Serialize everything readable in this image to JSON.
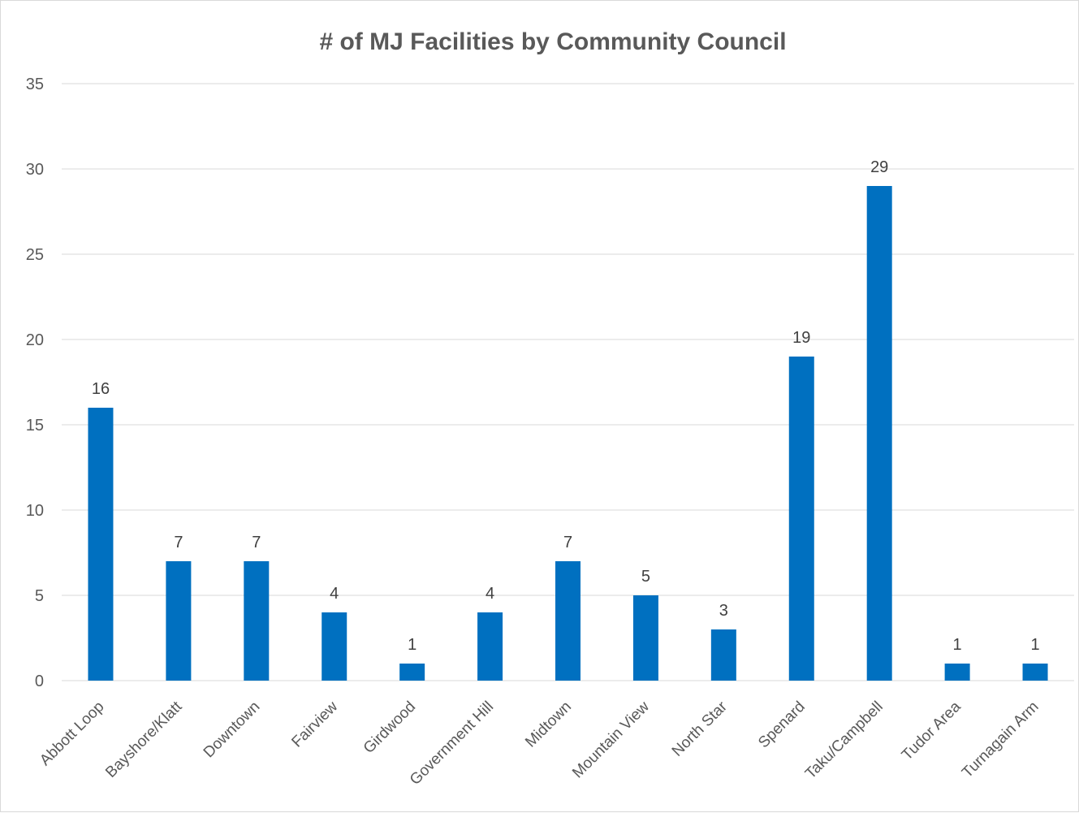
{
  "chart_data": {
    "type": "bar",
    "title": "# of MJ Facilities by Community Council",
    "categories": [
      "Abbott Loop",
      "Bayshore/Klatt",
      "Downtown",
      "Fairview",
      "Girdwood",
      "Government Hill",
      "Midtown",
      "Mountain View",
      "North Star",
      "Spenard",
      "Taku/Campbell",
      "Tudor Area",
      "Turnagain Arm"
    ],
    "values": [
      16,
      7,
      7,
      4,
      1,
      4,
      7,
      5,
      3,
      19,
      29,
      1,
      1
    ],
    "yticks": [
      "0",
      "5",
      "10",
      "15",
      "20",
      "25",
      "30",
      "35"
    ],
    "ylim": [
      0,
      35
    ],
    "grid": true,
    "legend": "none",
    "bar_color": "#0070C0",
    "gridline_color": "#d9d9d9"
  }
}
